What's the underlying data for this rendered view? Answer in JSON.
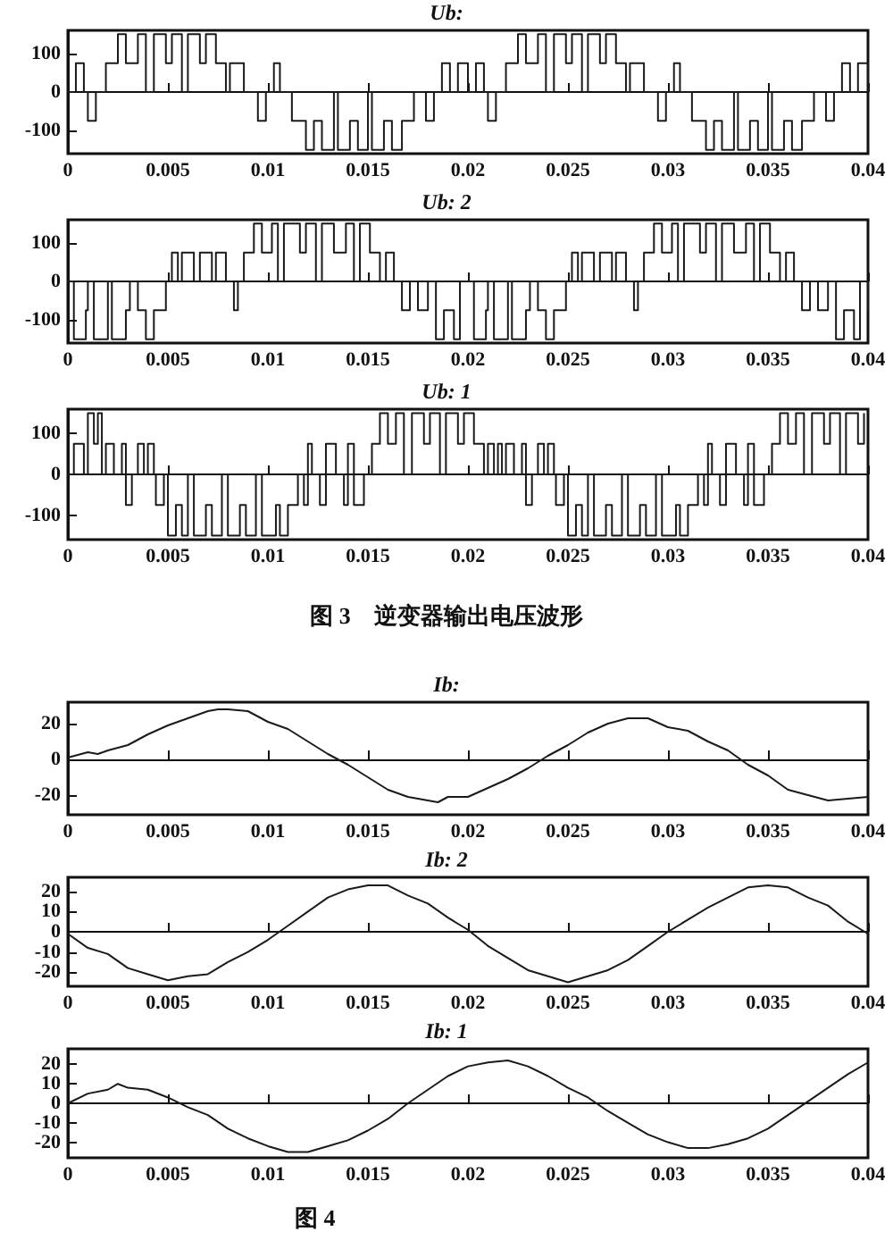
{
  "chart_data": [
    {
      "type": "step",
      "title": "Ub:",
      "color": "#1a1a1a",
      "xlim": [
        0,
        0.04
      ],
      "ylim": [
        -160,
        160
      ],
      "yticks": [
        -100,
        0,
        100
      ],
      "xticks": [
        0,
        0.005,
        0.01,
        0.015,
        0.02,
        0.025,
        0.03,
        0.035,
        0.04
      ],
      "x": [
        0,
        0.0004,
        0.0008,
        0.001,
        0.0014,
        0.0019,
        0.0025,
        0.0029,
        0.0035,
        0.0039,
        0.0043,
        0.0049,
        0.0052,
        0.0057,
        0.006,
        0.0066,
        0.0069,
        0.0074,
        0.0079,
        0.0081,
        0.0088,
        0.0095,
        0.0099,
        0.0103,
        0.0106,
        0.0112,
        0.0119,
        0.0123,
        0.0127,
        0.0133,
        0.0135,
        0.0141,
        0.0145,
        0.015,
        0.0152,
        0.0158,
        0.0162,
        0.0167,
        0.0173,
        0.0179,
        0.0183,
        0.0187,
        0.0191,
        0.0195,
        0.02,
        0.0204,
        0.0208,
        0.021,
        0.0214,
        0.0219,
        0.0225,
        0.0229,
        0.0235,
        0.0239,
        0.0243,
        0.0249,
        0.0252,
        0.0257,
        0.026,
        0.0266,
        0.0269,
        0.0274,
        0.0279,
        0.0281,
        0.0288,
        0.0295,
        0.0299,
        0.0303,
        0.0306,
        0.0312,
        0.0319,
        0.0323,
        0.0327,
        0.0333,
        0.0335,
        0.0341,
        0.0345,
        0.035,
        0.0352,
        0.0358,
        0.0362,
        0.0367,
        0.0373,
        0.0379,
        0.0383,
        0.0387,
        0.0391,
        0.0395,
        0.04
      ],
      "values": [
        0,
        75,
        0,
        -75,
        0,
        75,
        150,
        75,
        150,
        0,
        150,
        75,
        150,
        0,
        150,
        75,
        150,
        75,
        0,
        75,
        0,
        -75,
        0,
        75,
        0,
        -75,
        -150,
        -75,
        -150,
        0,
        -150,
        -75,
        -150,
        0,
        -150,
        -75,
        -150,
        -75,
        0,
        -75,
        0,
        75,
        0,
        75,
        0,
        75,
        0,
        -75,
        0,
        75,
        150,
        75,
        150,
        0,
        150,
        75,
        150,
        0,
        150,
        75,
        150,
        75,
        0,
        75,
        0,
        -75,
        0,
        75,
        0,
        -75,
        -150,
        -75,
        -150,
        0,
        -150,
        -75,
        -150,
        0,
        -150,
        -75,
        -150,
        -75,
        0,
        -75,
        0,
        75,
        0,
        75,
        0
      ]
    },
    {
      "type": "step",
      "title": "Ub: 2",
      "color": "#1a1a1a",
      "xlim": [
        0,
        0.04
      ],
      "ylim": [
        -160,
        160
      ],
      "yticks": [
        -100,
        0,
        100
      ],
      "xticks": [
        0,
        0.005,
        0.01,
        0.015,
        0.02,
        0.025,
        0.03,
        0.035,
        0.04
      ],
      "x": [
        0,
        0.0003,
        0.0009,
        0.001,
        0.0013,
        0.002,
        0.0022,
        0.0029,
        0.0031,
        0.0035,
        0.0039,
        0.0043,
        0.0049,
        0.0052,
        0.0055,
        0.0057,
        0.0063,
        0.0066,
        0.0072,
        0.0074,
        0.0079,
        0.0083,
        0.0085,
        0.0088,
        0.0093,
        0.0097,
        0.0102,
        0.0105,
        0.0108,
        0.0116,
        0.0119,
        0.0124,
        0.0127,
        0.0133,
        0.0139,
        0.0143,
        0.0146,
        0.0151,
        0.0156,
        0.0159,
        0.0163,
        0.0167,
        0.0171,
        0.0175,
        0.018,
        0.0184,
        0.0188,
        0.0193,
        0.0196,
        0.02,
        0.0203,
        0.0209,
        0.021,
        0.0213,
        0.022,
        0.0222,
        0.0229,
        0.0231,
        0.0235,
        0.0239,
        0.0243,
        0.0249,
        0.0252,
        0.0255,
        0.0257,
        0.0263,
        0.0266,
        0.0272,
        0.0274,
        0.0279,
        0.0283,
        0.0285,
        0.0288,
        0.0293,
        0.0297,
        0.0302,
        0.0305,
        0.0308,
        0.0316,
        0.0319,
        0.0324,
        0.0327,
        0.0333,
        0.0339,
        0.0343,
        0.0346,
        0.0351,
        0.0356,
        0.0359,
        0.0363,
        0.0367,
        0.0371,
        0.0375,
        0.038,
        0.0384,
        0.0388,
        0.0393,
        0.0396,
        0.04
      ],
      "values": [
        0,
        -150,
        -75,
        0,
        -150,
        0,
        -150,
        -75,
        0,
        -75,
        -150,
        -75,
        0,
        75,
        0,
        75,
        0,
        75,
        0,
        75,
        0,
        -75,
        0,
        75,
        150,
        75,
        150,
        0,
        150,
        75,
        150,
        0,
        150,
        75,
        150,
        0,
        150,
        75,
        0,
        75,
        0,
        -75,
        0,
        -75,
        0,
        -150,
        -75,
        -150,
        0,
        0,
        -150,
        -75,
        0,
        -150,
        0,
        -150,
        -75,
        0,
        -75,
        -150,
        -75,
        0,
        75,
        0,
        75,
        0,
        75,
        0,
        75,
        0,
        -75,
        0,
        75,
        150,
        75,
        150,
        0,
        150,
        75,
        150,
        0,
        150,
        75,
        150,
        0,
        150,
        75,
        0,
        75,
        0,
        -75,
        0,
        -75,
        0,
        -150,
        -75,
        -150,
        0,
        -75
      ]
    },
    {
      "type": "step",
      "title": "Ub: 1",
      "color": "#1a1a1a",
      "xlim": [
        0,
        0.04
      ],
      "ylim": [
        -160,
        160
      ],
      "yticks": [
        -100,
        0,
        100
      ],
      "xticks": [
        0,
        0.005,
        0.01,
        0.015,
        0.02,
        0.025,
        0.03,
        0.035,
        0.04
      ],
      "annotations": [
        "图 3　逆变器输出电压波形"
      ],
      "x": [
        0,
        0.0003,
        0.0008,
        0.001,
        0.0013,
        0.0015,
        0.0017,
        0.0019,
        0.0023,
        0.0027,
        0.0029,
        0.0032,
        0.0035,
        0.0038,
        0.004,
        0.0043,
        0.0044,
        0.0048,
        0.005,
        0.0054,
        0.0057,
        0.006,
        0.0063,
        0.0069,
        0.0072,
        0.0077,
        0.008,
        0.0086,
        0.0089,
        0.0094,
        0.0097,
        0.0104,
        0.0106,
        0.011,
        0.0115,
        0.0118,
        0.012,
        0.0122,
        0.0126,
        0.0129,
        0.0134,
        0.0138,
        0.014,
        0.0143,
        0.0148,
        0.0152,
        0.0156,
        0.016,
        0.0164,
        0.0168,
        0.0172,
        0.0178,
        0.0181,
        0.0186,
        0.0189,
        0.0195,
        0.0198,
        0.0203,
        0.0208,
        0.021,
        0.0213,
        0.0215,
        0.0217,
        0.0219,
        0.0223,
        0.0227,
        0.0229,
        0.0232,
        0.0235,
        0.0238,
        0.024,
        0.0243,
        0.0244,
        0.0248,
        0.025,
        0.0254,
        0.0257,
        0.026,
        0.0263,
        0.0269,
        0.0272,
        0.0277,
        0.028,
        0.0286,
        0.0289,
        0.0294,
        0.0297,
        0.0304,
        0.0306,
        0.031,
        0.0315,
        0.0318,
        0.032,
        0.0322,
        0.0326,
        0.0329,
        0.0334,
        0.0338,
        0.034,
        0.0343,
        0.0348,
        0.0352,
        0.0356,
        0.036,
        0.0364,
        0.0368,
        0.0372,
        0.0378,
        0.0381,
        0.0386,
        0.0389,
        0.0395,
        0.0398
      ],
      "values": [
        0,
        75,
        0,
        150,
        75,
        150,
        0,
        75,
        0,
        75,
        -75,
        0,
        75,
        0,
        75,
        0,
        -75,
        0,
        -150,
        -75,
        -150,
        0,
        -150,
        -75,
        -150,
        0,
        -150,
        -75,
        -150,
        0,
        -150,
        -75,
        -150,
        -75,
        0,
        -75,
        75,
        0,
        -75,
        75,
        0,
        -75,
        75,
        -75,
        0,
        75,
        150,
        75,
        150,
        0,
        150,
        75,
        150,
        0,
        150,
        75,
        150,
        75,
        0,
        75,
        0,
        75,
        0,
        75,
        0,
        75,
        -75,
        0,
        75,
        0,
        75,
        0,
        -75,
        0,
        -150,
        -75,
        -150,
        0,
        -150,
        -75,
        -150,
        0,
        -150,
        -75,
        -150,
        0,
        -150,
        -75,
        -150,
        -75,
        0,
        -75,
        75,
        0,
        -75,
        75,
        0,
        -75,
        75,
        -75,
        0,
        75,
        150,
        75,
        150,
        0,
        150,
        75,
        150,
        0,
        150,
        75,
        150
      ]
    },
    {
      "type": "line",
      "title": "Ib:",
      "color": "#1a1a1a",
      "xlim": [
        0,
        0.04
      ],
      "ylim": [
        -31,
        32
      ],
      "yticks": [
        -20,
        0,
        20
      ],
      "xticks": [
        0,
        0.005,
        0.01,
        0.015,
        0.02,
        0.025,
        0.03,
        0.035,
        0.04
      ],
      "x": [
        0,
        0.001,
        0.0015,
        0.002,
        0.003,
        0.004,
        0.005,
        0.006,
        0.007,
        0.0075,
        0.008,
        0.009,
        0.01,
        0.011,
        0.012,
        0.013,
        0.014,
        0.015,
        0.016,
        0.017,
        0.018,
        0.0185,
        0.019,
        0.02,
        0.021,
        0.022,
        0.023,
        0.024,
        0.025,
        0.026,
        0.027,
        0.028,
        0.029,
        0.03,
        0.031,
        0.032,
        0.033,
        0.034,
        0.035,
        0.036,
        0.037,
        0.038,
        0.039,
        0.04
      ],
      "values": [
        1,
        4,
        3,
        5,
        8,
        14,
        19,
        23,
        27,
        28,
        28,
        27,
        21,
        17,
        10,
        3,
        -3,
        -10,
        -17,
        -21,
        -23,
        -24,
        -21,
        -21,
        -16,
        -11,
        -5,
        2,
        8,
        15,
        20,
        23,
        23,
        18,
        16,
        10,
        5,
        -3,
        -9,
        -17,
        -20,
        -23,
        -22,
        -21
      ]
    },
    {
      "type": "line",
      "title": "Ib: 2",
      "color": "#1a1a1a",
      "xlim": [
        0,
        0.04
      ],
      "ylim": [
        -27,
        27
      ],
      "yticks": [
        -20,
        -10,
        0,
        10,
        20
      ],
      "xticks": [
        0,
        0.005,
        0.01,
        0.015,
        0.02,
        0.025,
        0.03,
        0.035,
        0.04
      ],
      "x": [
        0,
        0.001,
        0.002,
        0.003,
        0.004,
        0.005,
        0.006,
        0.007,
        0.008,
        0.009,
        0.01,
        0.011,
        0.012,
        0.013,
        0.014,
        0.015,
        0.016,
        0.017,
        0.018,
        0.019,
        0.02,
        0.021,
        0.022,
        0.023,
        0.024,
        0.025,
        0.026,
        0.027,
        0.028,
        0.029,
        0.03,
        0.031,
        0.032,
        0.033,
        0.034,
        0.035,
        0.036,
        0.037,
        0.038,
        0.039,
        0.04
      ],
      "values": [
        -1,
        -8,
        -11,
        -18,
        -21,
        -24,
        -22,
        -21,
        -15,
        -10,
        -4,
        3,
        10,
        17,
        21,
        23,
        23,
        18,
        14,
        7,
        1,
        -7,
        -13,
        -19,
        -22,
        -25,
        -22,
        -19,
        -14,
        -7,
        0,
        6,
        12,
        17,
        22,
        23,
        22,
        17,
        13,
        5,
        -1
      ]
    },
    {
      "type": "line",
      "title": "Ib: 1",
      "color": "#1a1a1a",
      "xlim": [
        0,
        0.04
      ],
      "ylim": [
        -28,
        28
      ],
      "yticks": [
        -20,
        -10,
        0,
        10,
        20
      ],
      "xticks": [
        0,
        0.005,
        0.01,
        0.015,
        0.02,
        0.025,
        0.03,
        0.035,
        0.04
      ],
      "annotations": [
        "图 4"
      ],
      "x": [
        0,
        0.001,
        0.002,
        0.0025,
        0.003,
        0.004,
        0.005,
        0.006,
        0.007,
        0.008,
        0.009,
        0.01,
        0.011,
        0.012,
        0.013,
        0.014,
        0.015,
        0.016,
        0.017,
        0.018,
        0.019,
        0.02,
        0.021,
        0.022,
        0.023,
        0.024,
        0.025,
        0.026,
        0.027,
        0.028,
        0.029,
        0.03,
        0.031,
        0.032,
        0.033,
        0.034,
        0.035,
        0.036,
        0.037,
        0.038,
        0.039,
        0.04
      ],
      "values": [
        0,
        5,
        7,
        10,
        8,
        7,
        3,
        -2,
        -6,
        -13,
        -18,
        -22,
        -25,
        -25,
        -22,
        -19,
        -14,
        -8,
        0,
        7,
        14,
        19,
        21,
        22,
        19,
        14,
        8,
        3,
        -4,
        -10,
        -16,
        -20,
        -23,
        -23,
        -21,
        -18,
        -13,
        -6,
        1,
        8,
        15,
        21
      ]
    }
  ]
}
